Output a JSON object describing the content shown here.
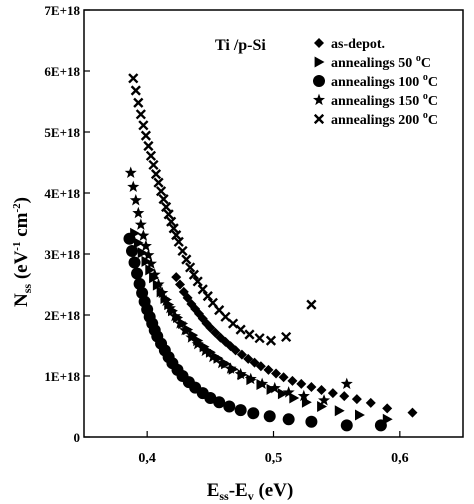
{
  "chart_data": {
    "type": "scatter",
    "annotation": "Ti /p-Si",
    "xlabel": {
      "main": "E",
      "sub1": "ss",
      "mid": "-E",
      "sub2": "v",
      "unit": " (eV)"
    },
    "ylabel": {
      "main": "N",
      "sub": "ss",
      "unit_open": " (eV",
      "sup1": "-1",
      "unit_mid": " cm",
      "sup2": "-2",
      "unit_close": ")"
    },
    "xlim": [
      0.35,
      0.65
    ],
    "ylim": [
      0,
      7e+18
    ],
    "x_ticks": [
      {
        "value": 0.4,
        "label": "0,4"
      },
      {
        "value": 0.5,
        "label": "0,5"
      },
      {
        "value": 0.6,
        "label": "0,6"
      }
    ],
    "y_ticks": [
      {
        "value": 0,
        "label": "0"
      },
      {
        "value": 1e+18,
        "label": "1E+18"
      },
      {
        "value": 2e+18,
        "label": "2E+18"
      },
      {
        "value": 3e+18,
        "label": "3E+18"
      },
      {
        "value": 4e+18,
        "label": "4E+18"
      },
      {
        "value": 5e+18,
        "label": "5E+18"
      },
      {
        "value": 6e+18,
        "label": "6E+18"
      },
      {
        "value": 7e+18,
        "label": "7E+18"
      }
    ],
    "legend_position": "top-right",
    "series": [
      {
        "name": "as-depot.",
        "marker": "diamond",
        "x": [
          0.423,
          0.426,
          0.429,
          0.432,
          0.435,
          0.438,
          0.441,
          0.444,
          0.447,
          0.45,
          0.454,
          0.458,
          0.462,
          0.466,
          0.47,
          0.475,
          0.48,
          0.485,
          0.49,
          0.496,
          0.502,
          0.508,
          0.515,
          0.522,
          0.53,
          0.538,
          0.547,
          0.556,
          0.566,
          0.577,
          0.59,
          0.61
        ],
        "y": [
          2.62e+18,
          2.5e+18,
          2.38e+18,
          2.28e+18,
          2.18e+18,
          2.1e+18,
          2.02e+18,
          1.94e+18,
          1.86e+18,
          1.79e+18,
          1.71e+18,
          1.63e+18,
          1.56e+18,
          1.49e+18,
          1.42e+18,
          1.35e+18,
          1.28e+18,
          1.22e+18,
          1.16e+18,
          1.1e+18,
          1.04e+18,
          9.8e+17,
          9.2e+17,
          8.7e+17,
          8.2e+17,
          7.7e+17,
          7.2e+17,
          6.7e+17,
          6.2e+17,
          5.6e+17,
          4.7e+17,
          4e+17
        ]
      },
      {
        "name": "annealings 50 ",
        "unit_sup": "o",
        "unit": "C",
        "marker": "triangle-right",
        "x": [
          0.39,
          0.393,
          0.396,
          0.399,
          0.402,
          0.405,
          0.408,
          0.411,
          0.414,
          0.417,
          0.42,
          0.424,
          0.428,
          0.432,
          0.436,
          0.44,
          0.445,
          0.45,
          0.456,
          0.462,
          0.468,
          0.475,
          0.482,
          0.49,
          0.498,
          0.507,
          0.516,
          0.526,
          0.538,
          0.552,
          0.568,
          0.59
        ],
        "y": [
          3.34e+18,
          3.18e+18,
          3.02e+18,
          2.88e+18,
          2.74e+18,
          2.61e+18,
          2.49e+18,
          2.38e+18,
          2.27e+18,
          2.17e+18,
          2.07e+18,
          1.96e+18,
          1.86e+18,
          1.76e+18,
          1.67e+18,
          1.58e+18,
          1.48e+18,
          1.39e+18,
          1.29e+18,
          1.2e+18,
          1.11e+18,
          1.02e+18,
          9.4e+17,
          8.6e+17,
          7.8e+17,
          7.1e+17,
          6.4e+17,
          5.7e+17,
          5e+17,
          4.3e+17,
          3.6e+17,
          2.9e+17
        ]
      },
      {
        "name": "annealings 100 ",
        "unit_sup": "o",
        "unit": "C",
        "marker": "circle",
        "x": [
          0.386,
          0.388,
          0.39,
          0.392,
          0.394,
          0.396,
          0.398,
          0.4,
          0.402,
          0.404,
          0.406,
          0.408,
          0.411,
          0.414,
          0.417,
          0.42,
          0.424,
          0.428,
          0.433,
          0.438,
          0.444,
          0.45,
          0.457,
          0.465,
          0.474,
          0.484,
          0.497,
          0.512,
          0.53,
          0.558,
          0.585
        ],
        "y": [
          3.25e+18,
          3.05e+18,
          2.86e+18,
          2.68e+18,
          2.51e+18,
          2.36e+18,
          2.22e+18,
          2.09e+18,
          1.97e+18,
          1.86e+18,
          1.75e+18,
          1.65e+18,
          1.53e+18,
          1.42e+18,
          1.31e+18,
          1.21e+18,
          1.1e+18,
          1e+18,
          9e+17,
          8.1e+17,
          7.2e+17,
          6.4e+17,
          5.7e+17,
          5e+17,
          4.4e+17,
          3.9e+17,
          3.4e+17,
          2.9e+17,
          2.5e+17,
          1.9e+17,
          1.9e+17
        ]
      },
      {
        "name": "annealings 150 ",
        "unit_sup": "o",
        "unit": "C",
        "marker": "star",
        "x": [
          0.387,
          0.389,
          0.391,
          0.393,
          0.395,
          0.397,
          0.399,
          0.401,
          0.403,
          0.406,
          0.409,
          0.412,
          0.415,
          0.418,
          0.422,
          0.426,
          0.43,
          0.435,
          0.44,
          0.446,
          0.452,
          0.459,
          0.466,
          0.474,
          0.482,
          0.491,
          0.501,
          0.512,
          0.524,
          0.54,
          0.558
        ],
        "y": [
          4.33e+18,
          4.1e+18,
          3.88e+18,
          3.67e+18,
          3.48e+18,
          3.3e+18,
          3.13e+18,
          2.98e+18,
          2.84e+18,
          2.66e+18,
          2.5e+18,
          2.36e+18,
          2.23e+18,
          2.11e+18,
          1.98e+18,
          1.86e+18,
          1.75e+18,
          1.63e+18,
          1.52e+18,
          1.41e+18,
          1.31e+18,
          1.21e+18,
          1.12e+18,
          1.03e+18,
          9.5e+17,
          8.7e+17,
          8e+17,
          7.3e+17,
          6.7e+17,
          6e+17,
          8.7e+17
        ]
      },
      {
        "name": "annealings 200 ",
        "unit_sup": "o",
        "unit": "C",
        "marker": "x",
        "x": [
          0.389,
          0.391,
          0.393,
          0.395,
          0.397,
          0.399,
          0.401,
          0.403,
          0.405,
          0.407,
          0.409,
          0.411,
          0.413,
          0.415,
          0.417,
          0.419,
          0.421,
          0.423,
          0.425,
          0.428,
          0.431,
          0.434,
          0.437,
          0.44,
          0.444,
          0.448,
          0.452,
          0.457,
          0.462,
          0.468,
          0.474,
          0.481,
          0.489,
          0.498,
          0.51,
          0.53
        ],
        "y": [
          5.88e+18,
          5.68e+18,
          5.48e+18,
          5.29e+18,
          5.11e+18,
          4.94e+18,
          4.77e+18,
          4.61e+18,
          4.46e+18,
          4.31e+18,
          4.17e+18,
          4.03e+18,
          3.9e+18,
          3.77e+18,
          3.65e+18,
          3.53e+18,
          3.42e+18,
          3.31e+18,
          3.2e+18,
          3.05e+18,
          2.91e+18,
          2.78e+18,
          2.66e+18,
          2.55e+18,
          2.42e+18,
          2.31e+18,
          2.2e+18,
          2.08e+18,
          1.97e+18,
          1.86e+18,
          1.76e+18,
          1.68e+18,
          1.62e+18,
          1.58e+18,
          1.64e+18,
          2.17e+18
        ]
      }
    ]
  }
}
